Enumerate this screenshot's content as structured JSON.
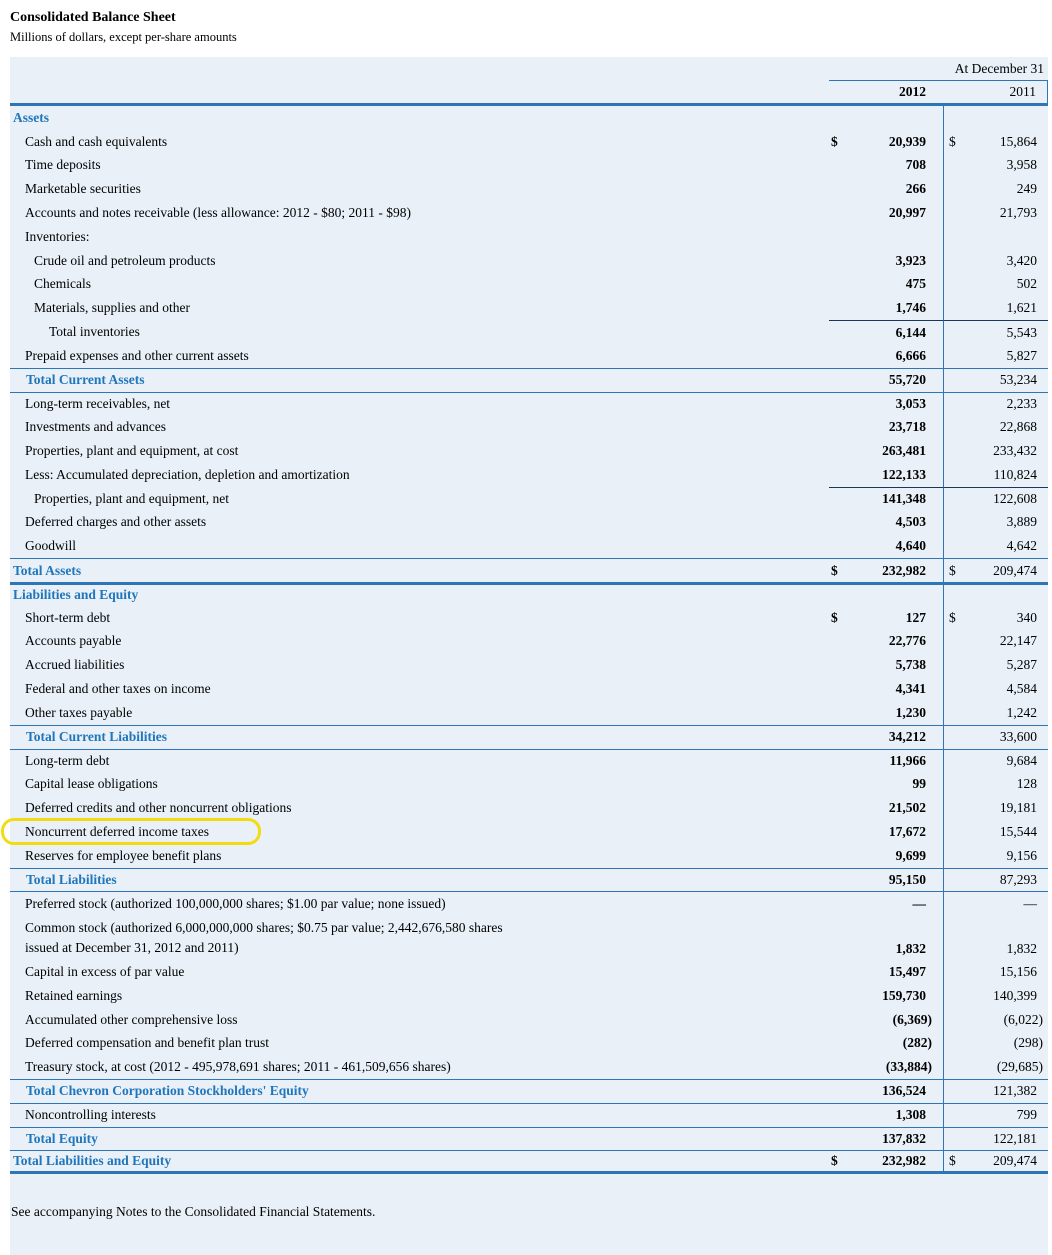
{
  "page": {
    "title": "Consolidated Balance Sheet",
    "subtitle": "Millions of dollars, except per-share amounts",
    "footnote": "See accompanying Notes to the Consolidated Financial Statements."
  },
  "colors": {
    "sheet_background": "#e9f0f8",
    "line_blue": "#2e75b6",
    "heading_blue": "#1f76bb",
    "subtotal_rule_dark": "#17375d",
    "highlight_yellow": "#f2dc0f"
  },
  "table": {
    "period_label": "At December 31",
    "columns": [
      "2012",
      "2011"
    ],
    "rows": [
      {
        "label": "Assets",
        "type": "section"
      },
      {
        "label": "Cash and cash equivalents",
        "indent": 1,
        "dollar": true,
        "v1": "20,939",
        "v2": "15,864"
      },
      {
        "label": "Time deposits",
        "indent": 1,
        "v1": "708",
        "v2": "3,958"
      },
      {
        "label": "Marketable securities",
        "indent": 1,
        "v1": "266",
        "v2": "249"
      },
      {
        "label": "Accounts and notes receivable (less allowance: 2012 - $80; 2011 - $98)",
        "indent": 1,
        "v1": "20,997",
        "v2": "21,793"
      },
      {
        "label": "Inventories:",
        "indent": 1
      },
      {
        "label": "Crude oil and petroleum products",
        "indent": 2,
        "v1": "3,923",
        "v2": "3,420"
      },
      {
        "label": "Chemicals",
        "indent": 2,
        "v1": "475",
        "v2": "502"
      },
      {
        "label": "Materials, supplies and other",
        "indent": 2,
        "v1": "1,746",
        "v2": "1,621"
      },
      {
        "label": "Total inventories",
        "indent": 3,
        "v1": "6,144",
        "v2": "5,543",
        "sep": "nt"
      },
      {
        "label": "Prepaid expenses and other current assets",
        "indent": 1,
        "v1": "6,666",
        "v2": "5,827"
      },
      {
        "label": "Total Current Assets",
        "type": "total",
        "v1": "55,720",
        "v2": "53,234",
        "sep": "lt"
      },
      {
        "label": "Long-term receivables, net",
        "indent": 1,
        "v1": "3,053",
        "v2": "2,233",
        "sep": "lt"
      },
      {
        "label": "Investments and advances",
        "indent": 1,
        "v1": "23,718",
        "v2": "22,868"
      },
      {
        "label": "Properties, plant and equipment, at cost",
        "indent": 1,
        "v1": "263,481",
        "v2": "233,432"
      },
      {
        "label": "Less: Accumulated depreciation, depletion and amortization",
        "indent": 1,
        "v1": "122,133",
        "v2": "110,824"
      },
      {
        "label": "Properties, plant and equipment, net",
        "indent": 2,
        "v1": "141,348",
        "v2": "122,608",
        "sep": "nt"
      },
      {
        "label": "Deferred charges and other assets",
        "indent": 1,
        "v1": "4,503",
        "v2": "3,889"
      },
      {
        "label": "Goodwill",
        "indent": 1,
        "v1": "4,640",
        "v2": "4,642"
      },
      {
        "label": "Total Assets",
        "type": "grand",
        "dollar": true,
        "v1": "232,982",
        "v2": "209,474",
        "sep": "lt"
      },
      {
        "label": "Liabilities and Equity",
        "type": "section",
        "sep": "ltk"
      },
      {
        "label": "Short-term debt",
        "indent": 1,
        "dollar": true,
        "v1": "127",
        "v2": "340"
      },
      {
        "label": "Accounts payable",
        "indent": 1,
        "v1": "22,776",
        "v2": "22,147"
      },
      {
        "label": "Accrued liabilities",
        "indent": 1,
        "v1": "5,738",
        "v2": "5,287"
      },
      {
        "label": "Federal and other taxes on income",
        "indent": 1,
        "v1": "4,341",
        "v2": "4,584"
      },
      {
        "label": "Other taxes payable",
        "indent": 1,
        "v1": "1,230",
        "v2": "1,242"
      },
      {
        "label": "Total Current Liabilities",
        "type": "total",
        "v1": "34,212",
        "v2": "33,600",
        "sep": "lt"
      },
      {
        "label": "Long-term debt",
        "indent": 1,
        "v1": "11,966",
        "v2": "9,684",
        "sep": "lt"
      },
      {
        "label": "Capital lease obligations",
        "indent": 1,
        "v1": "99",
        "v2": "128"
      },
      {
        "label": "Deferred credits and other noncurrent obligations",
        "indent": 1,
        "v1": "21,502",
        "v2": "19,181"
      },
      {
        "label": "Noncurrent deferred income taxes",
        "indent": 1,
        "v1": "17,672",
        "v2": "15,544",
        "highlight": true
      },
      {
        "label": "Reserves for employee benefit plans",
        "indent": 1,
        "v1": "9,699",
        "v2": "9,156"
      },
      {
        "label": "Total Liabilities",
        "type": "total",
        "v1": "95,150",
        "v2": "87,293",
        "sep": "lt"
      },
      {
        "label": "Preferred stock (authorized 100,000,000 shares; $1.00 par value; none issued)",
        "indent": 1,
        "v1": "—",
        "v2": "—",
        "sep": "lt"
      },
      {
        "label": "Common stock (authorized 6,000,000,000 shares; $0.75 par value; 2,442,676,580 shares",
        "label2": "issued at December 31, 2012 and 2011)",
        "indent": 1,
        "v1": "1,832",
        "v2": "1,832"
      },
      {
        "label": "Capital in excess of par value",
        "indent": 1,
        "v1": "15,497",
        "v2": "15,156"
      },
      {
        "label": "Retained earnings",
        "indent": 1,
        "v1": "159,730",
        "v2": "140,399"
      },
      {
        "label": "Accumulated other comprehensive loss",
        "indent": 1,
        "v1": "(6,369)",
        "v2": "(6,022)"
      },
      {
        "label": "Deferred compensation and benefit plan trust",
        "indent": 1,
        "v1": "(282)",
        "v2": "(298)"
      },
      {
        "label": "Treasury stock, at cost (2012 - 495,978,691 shares; 2011 - 461,509,656 shares)",
        "indent": 1,
        "v1": "(33,884)",
        "v2": "(29,685)"
      },
      {
        "label": "Total Chevron Corporation Stockholders' Equity",
        "type": "total",
        "v1": "136,524",
        "v2": "121,382",
        "sep": "lt"
      },
      {
        "label": "Noncontrolling interests",
        "indent": 1,
        "v1": "1,308",
        "v2": "799",
        "sep": "lt"
      },
      {
        "label": "Total Equity",
        "type": "total",
        "v1": "137,832",
        "v2": "122,181",
        "sep": "lt"
      },
      {
        "label": "Total Liabilities and Equity",
        "type": "grand",
        "dollar": true,
        "v1": "232,982",
        "v2": "209,474",
        "sep": "lt lbk"
      }
    ]
  }
}
